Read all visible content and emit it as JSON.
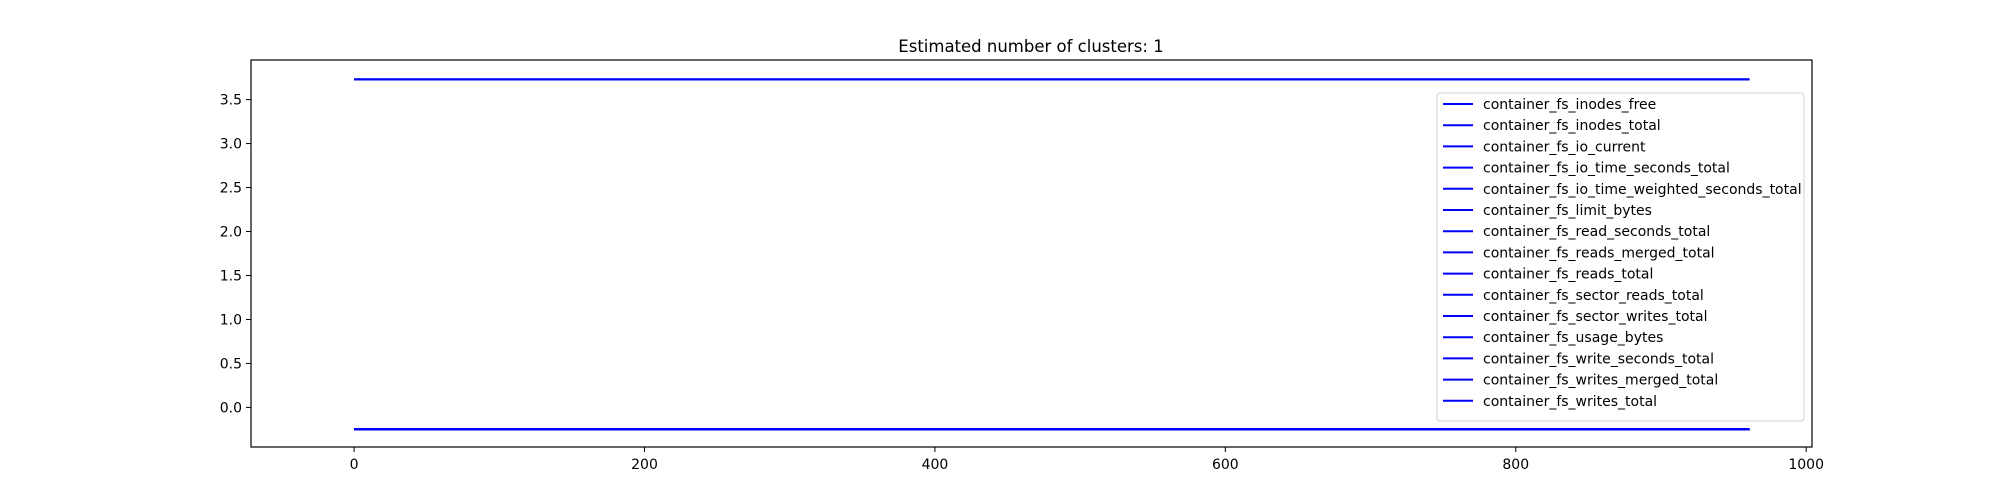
{
  "chart_data": {
    "type": "line",
    "title": "Estimated number of clusters: 1",
    "xlabel": "",
    "ylabel": "",
    "xlim": [
      -71,
      1004
    ],
    "ylim": [
      -0.45,
      3.95
    ],
    "xticks": [
      0,
      200,
      400,
      600,
      800,
      1000
    ],
    "yticks": [
      0.0,
      0.5,
      1.0,
      1.5,
      2.0,
      2.5,
      3.0,
      3.5
    ],
    "grid": false,
    "legend_position": "upper-right",
    "line_color": "#0000ff",
    "series": [
      {
        "name": "container_fs_inodes_free",
        "x": [
          0,
          961
        ],
        "y": [
          3.73,
          3.73
        ]
      },
      {
        "name": "container_fs_inodes_total",
        "x": [
          0,
          961
        ],
        "y": [
          3.73,
          3.73
        ]
      },
      {
        "name": "container_fs_io_current",
        "x": [
          0,
          961
        ],
        "y": [
          -0.25,
          -0.25
        ]
      },
      {
        "name": "container_fs_io_time_seconds_total",
        "x": [
          0,
          961
        ],
        "y": [
          -0.25,
          -0.25
        ]
      },
      {
        "name": "container_fs_io_time_weighted_seconds_total",
        "x": [
          0,
          961
        ],
        "y": [
          -0.25,
          -0.25
        ]
      },
      {
        "name": "container_fs_limit_bytes",
        "x": [
          0,
          961
        ],
        "y": [
          3.73,
          3.73
        ]
      },
      {
        "name": "container_fs_read_seconds_total",
        "x": [
          0,
          961
        ],
        "y": [
          -0.25,
          -0.25
        ]
      },
      {
        "name": "container_fs_reads_merged_total",
        "x": [
          0,
          961
        ],
        "y": [
          -0.25,
          -0.25
        ]
      },
      {
        "name": "container_fs_reads_total",
        "x": [
          0,
          961
        ],
        "y": [
          -0.25,
          -0.25
        ]
      },
      {
        "name": "container_fs_sector_reads_total",
        "x": [
          0,
          961
        ],
        "y": [
          -0.25,
          -0.25
        ]
      },
      {
        "name": "container_fs_sector_writes_total",
        "x": [
          0,
          961
        ],
        "y": [
          -0.25,
          -0.25
        ]
      },
      {
        "name": "container_fs_usage_bytes",
        "x": [
          0,
          961
        ],
        "y": [
          -0.25,
          -0.25
        ]
      },
      {
        "name": "container_fs_write_seconds_total",
        "x": [
          0,
          961
        ],
        "y": [
          -0.25,
          -0.25
        ]
      },
      {
        "name": "container_fs_writes_merged_total",
        "x": [
          0,
          961
        ],
        "y": [
          -0.25,
          -0.25
        ]
      },
      {
        "name": "container_fs_writes_total",
        "x": [
          0,
          961
        ],
        "y": [
          -0.25,
          -0.25
        ]
      }
    ]
  }
}
